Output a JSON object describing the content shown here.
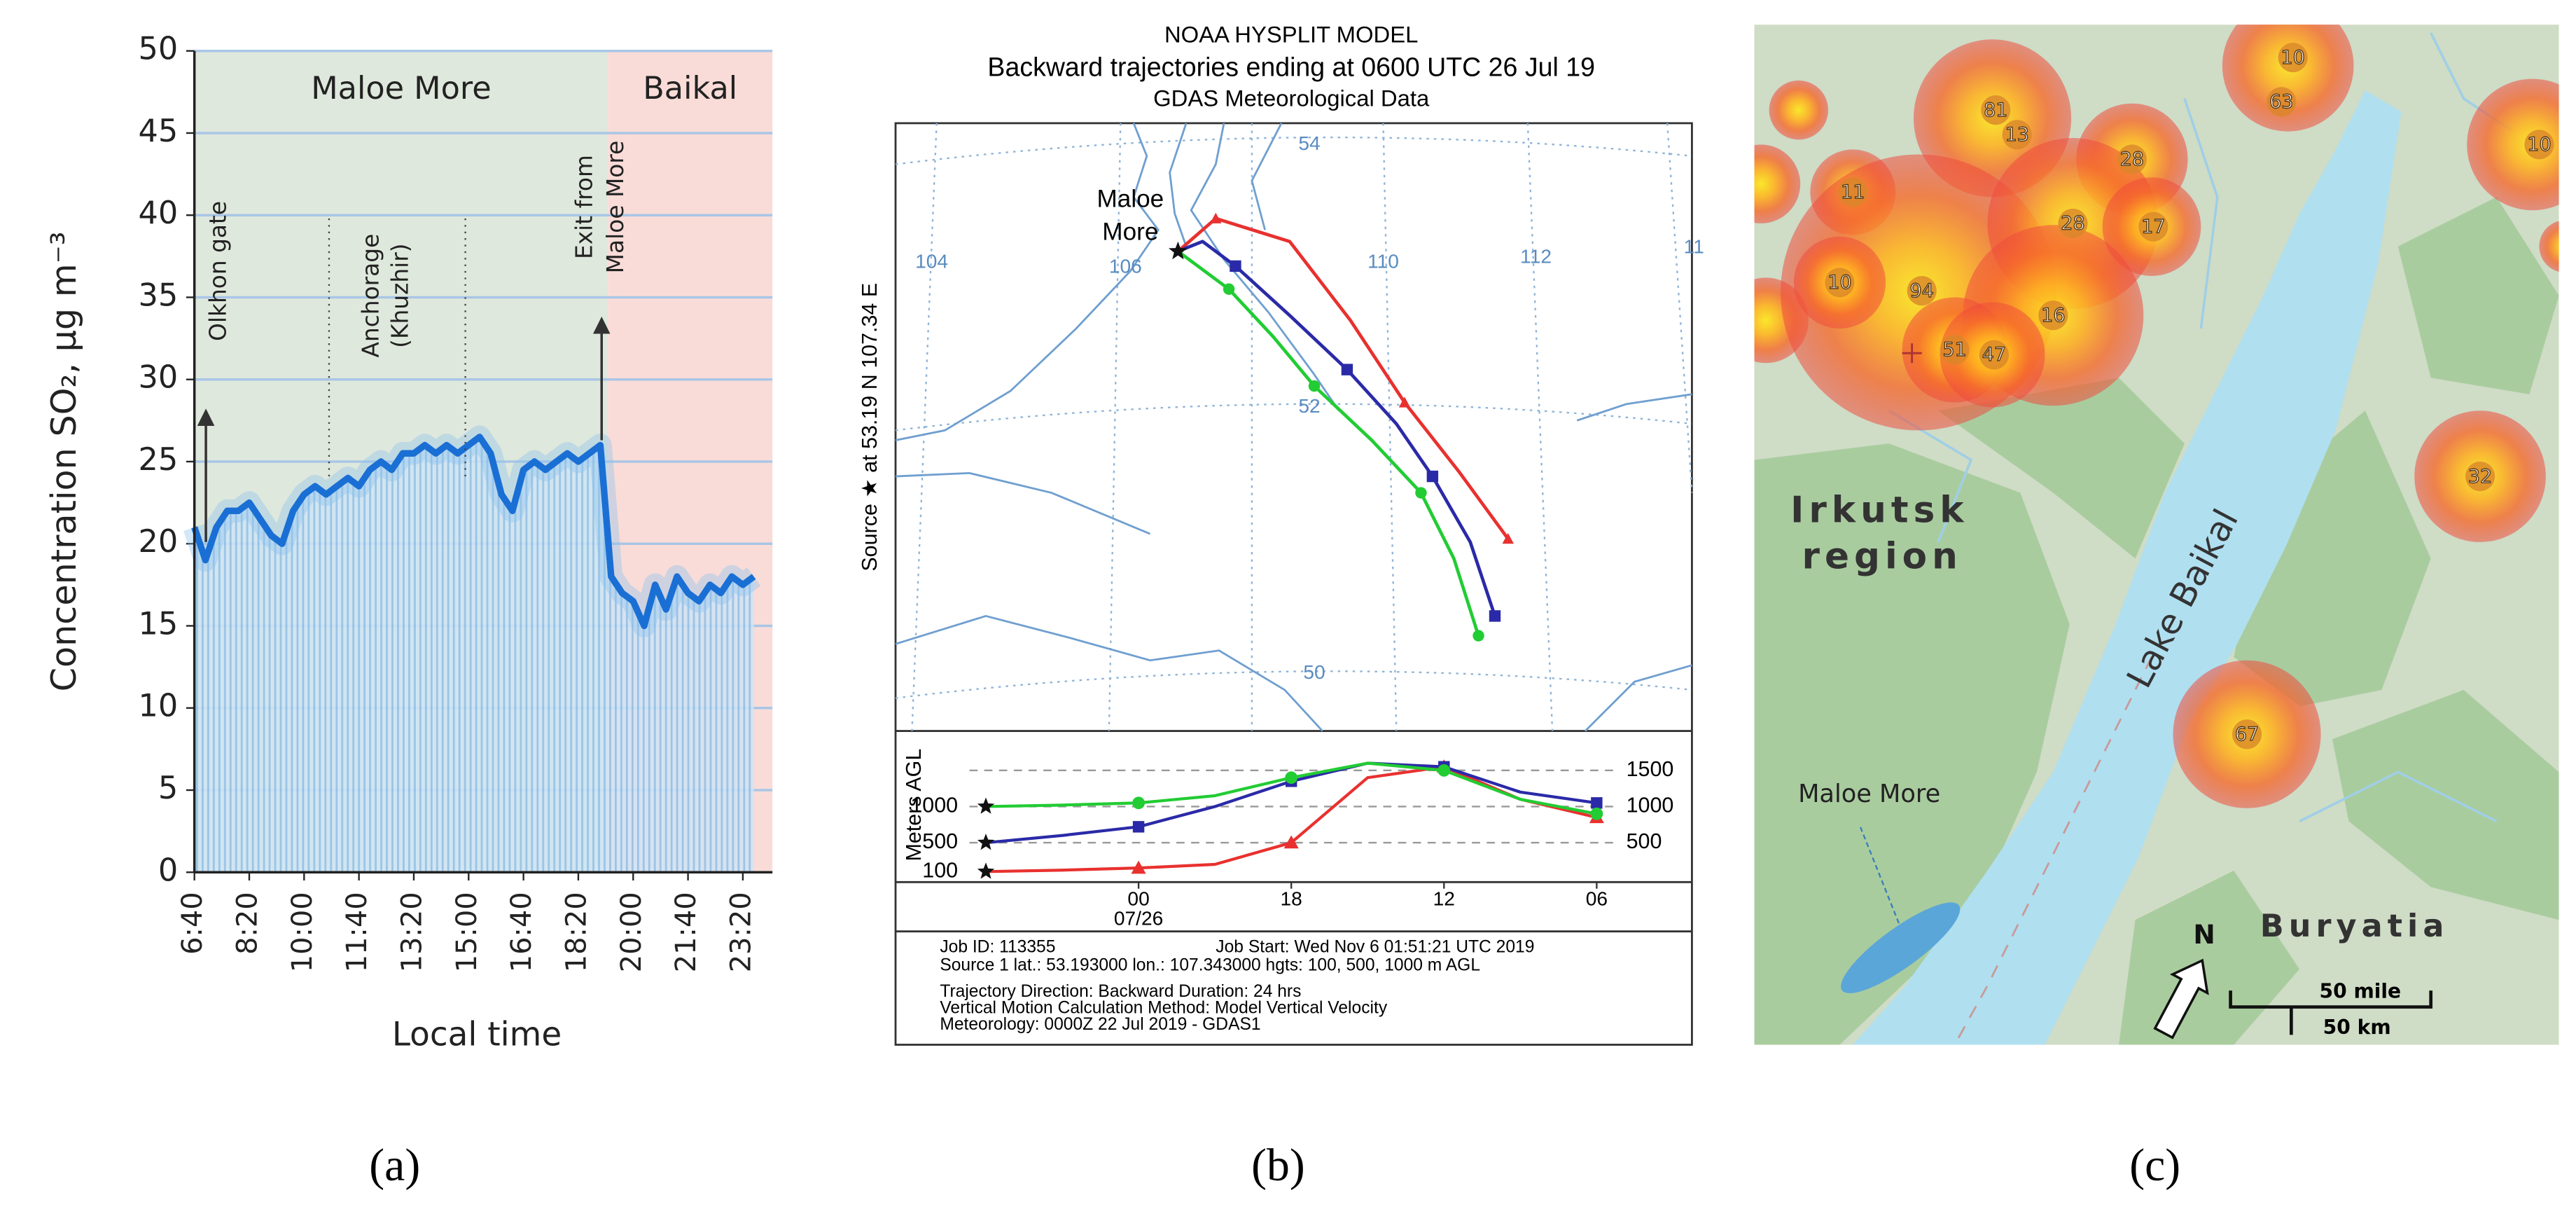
{
  "chart_data": [
    {
      "type": "line",
      "ylabel": "Concentration SO₂, µg m⁻³",
      "xlabel": "Local time",
      "categories": [
        "6:40",
        null,
        null,
        null,
        null,
        "8:20",
        null,
        null,
        null,
        null,
        "10:00",
        null,
        null,
        null,
        null,
        "11:40",
        null,
        null,
        null,
        null,
        "13:20",
        null,
        null,
        null,
        null,
        "15:00",
        null,
        null,
        null,
        null,
        "16:40",
        null,
        null,
        null,
        null,
        "18:20",
        null,
        null,
        null,
        null,
        "20:00",
        null,
        null,
        null,
        null,
        "21:40",
        null,
        null,
        null,
        null,
        "23:20",
        null
      ],
      "values": [
        21,
        19,
        21,
        22,
        22,
        22.5,
        21.5,
        20.5,
        20,
        22,
        23,
        23.5,
        23,
        23.5,
        24,
        23.5,
        24.5,
        25,
        24.5,
        25.5,
        25.5,
        26,
        25.5,
        26,
        25.5,
        26,
        26.5,
        25.5,
        23,
        22,
        24.5,
        25,
        24.5,
        25,
        25.5,
        25,
        25.5,
        26,
        18,
        17,
        16.5,
        15,
        17.5,
        16,
        18,
        17,
        16.5,
        17.5,
        17,
        18,
        17.5,
        18
      ],
      "color": "#1a6fd4",
      "ylim": [
        0,
        50
      ],
      "yticks": [
        0,
        5,
        10,
        15,
        20,
        25,
        30,
        35,
        40,
        45,
        50
      ],
      "grid": true,
      "regions": [
        {
          "label": "Maloe More",
          "color": "#dfe8dc"
        },
        {
          "label": "Baikal",
          "color": "#f9dcd8"
        }
      ],
      "annotations": [
        {
          "lines": [
            "Olkhon gate"
          ]
        },
        {
          "lines": [
            "Anchorage",
            "(Khuzhir)"
          ]
        },
        {
          "lines": [
            "Exit from",
            "Maloe More"
          ]
        }
      ]
    },
    {
      "type": "line",
      "ylabel": "Meters AGL",
      "categories": [
        null,
        null,
        "00",
        null,
        "18",
        null,
        "12",
        null,
        "06"
      ],
      "date_label": "07/26",
      "series": [
        {
          "color": "#e8312f",
          "values": [
            100,
            120,
            150,
            200,
            500,
            1400,
            1550,
            1100,
            850
          ]
        },
        {
          "color": "#2a2aa8",
          "values": [
            500,
            600,
            720,
            1000,
            1350,
            1600,
            1550,
            1200,
            1050
          ]
        },
        {
          "color": "#22cc33",
          "values": [
            1000,
            1020,
            1050,
            1150,
            1400,
            1600,
            1500,
            1100,
            900
          ]
        }
      ],
      "ylim": [
        0,
        2000
      ],
      "yticks": [
        500,
        1000,
        1500
      ],
      "start_heights": [
        1000,
        500,
        100
      ],
      "grid": true
    }
  ],
  "hysplit": {
    "title_lines": [
      "NOAA HYSPLIT MODEL",
      "Backward trajectories ending at 0600 UTC 26 Jul 19",
      "GDAS Meteorological Data"
    ],
    "source_label": "Source ★  at    53.19 N   107.34 E",
    "place_lines": [
      "Maloe",
      "More"
    ],
    "lon_labels": [
      "104",
      "106",
      "110",
      "112",
      "11"
    ],
    "lat_labels": [
      "54",
      "52",
      "50"
    ],
    "job_id": "Job ID: 113355",
    "job_start": "Job Start: Wed Nov  6 01:51:21 UTC 2019",
    "info_lines": [
      "Source 1 lat.: 53.193000 lon.: 107.343000 hgts: 100, 500, 1000 m AGL",
      "Trajectory Direction: Backward     Duration: 24 hrs",
      "Vertical Motion Calculation Method:     Model Vertical Velocity",
      "Meteorology: 0000Z 22 Jul 2019 - GDAS1"
    ]
  },
  "map": {
    "region_lines": [
      "Irkutsk",
      "region"
    ],
    "lake": "Lake Baikal",
    "buryatia": "Buryatia",
    "maloe_more": "Maloe More",
    "north": "N",
    "scale_mile": "50 mile",
    "scale_km": "50 km",
    "clusters": [
      81,
      13,
      28,
      10,
      63,
      10,
      11,
      94,
      10,
      28,
      17,
      16,
      51,
      47,
      32,
      67
    ]
  },
  "panel_labels": [
    "(a)",
    "(b)",
    "(c)"
  ]
}
